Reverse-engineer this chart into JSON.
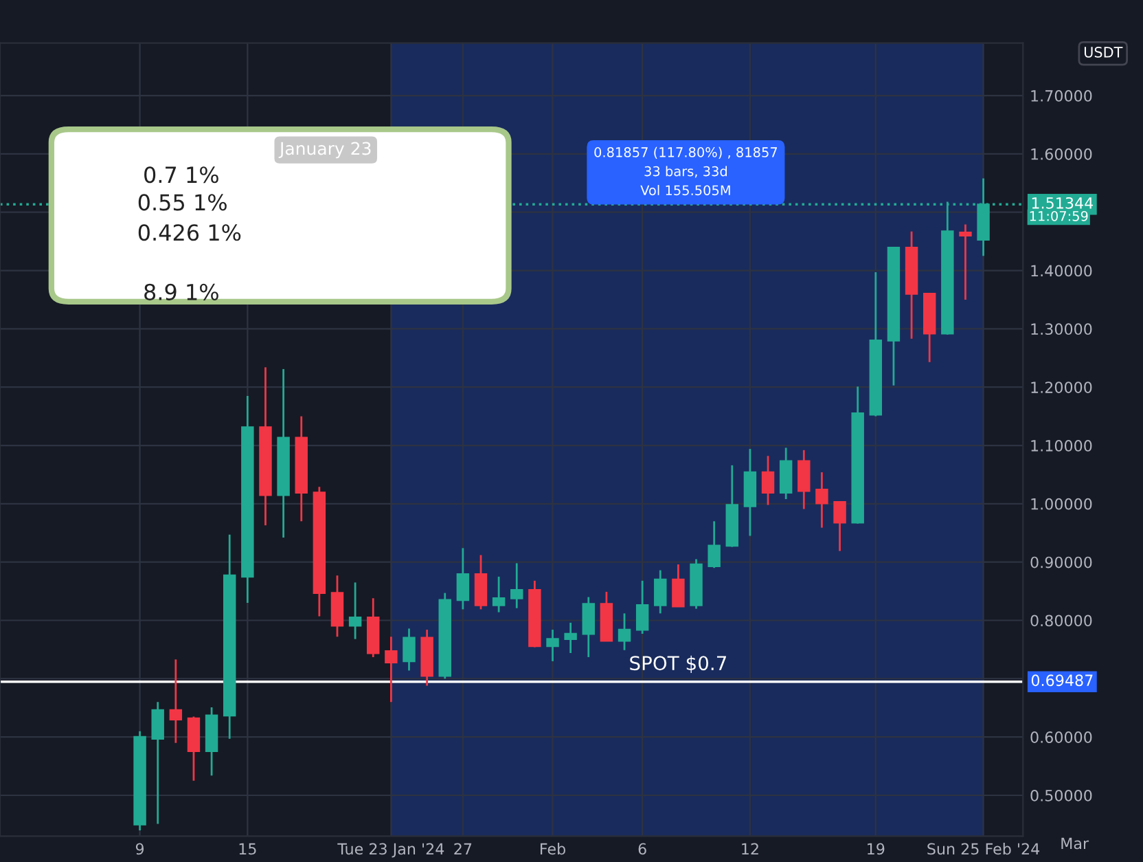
{
  "chart_data": {
    "type": "candlestick",
    "x": [
      "2024-01-09",
      "2024-01-10",
      "2024-01-11",
      "2024-01-12",
      "2024-01-13",
      "2024-01-14",
      "2024-01-15",
      "2024-01-16",
      "2024-01-17",
      "2024-01-18",
      "2024-01-19",
      "2024-01-20",
      "2024-01-21",
      "2024-01-22",
      "2024-01-23",
      "2024-01-24",
      "2024-01-25",
      "2024-01-26",
      "2024-01-27",
      "2024-01-28",
      "2024-01-29",
      "2024-01-30",
      "2024-01-31",
      "2024-02-01",
      "2024-02-02",
      "2024-02-03",
      "2024-02-04",
      "2024-02-05",
      "2024-02-06",
      "2024-02-07",
      "2024-02-08",
      "2024-02-09",
      "2024-02-10",
      "2024-02-11",
      "2024-02-12",
      "2024-02-13",
      "2024-02-14",
      "2024-02-15",
      "2024-02-16",
      "2024-02-17",
      "2024-02-18",
      "2024-02-19",
      "2024-02-20",
      "2024-02-21",
      "2024-02-22",
      "2024-02-23",
      "2024-02-24",
      "2024-02-25"
    ],
    "ohlc": [
      [
        0.45,
        0.61,
        0.44,
        0.6
      ],
      [
        0.597,
        0.66,
        0.451,
        0.646
      ],
      [
        0.646,
        0.733,
        0.59,
        0.63
      ],
      [
        0.632,
        0.635,
        0.525,
        0.576
      ],
      [
        0.576,
        0.651,
        0.534,
        0.637
      ],
      [
        0.637,
        0.947,
        0.597,
        0.877
      ],
      [
        0.875,
        1.185,
        0.83,
        1.131
      ],
      [
        1.131,
        1.234,
        0.963,
        1.015
      ],
      [
        1.015,
        1.231,
        0.942,
        1.113
      ],
      [
        1.113,
        1.15,
        0.97,
        1.019
      ],
      [
        1.019,
        1.029,
        0.807,
        0.847
      ],
      [
        0.847,
        0.877,
        0.772,
        0.791
      ],
      [
        0.791,
        0.865,
        0.768,
        0.805
      ],
      [
        0.805,
        0.838,
        0.737,
        0.744
      ],
      [
        0.747,
        0.772,
        0.66,
        0.728
      ],
      [
        0.73,
        0.786,
        0.714,
        0.77
      ],
      [
        0.77,
        0.784,
        0.688,
        0.705
      ],
      [
        0.705,
        0.847,
        0.7,
        0.835
      ],
      [
        0.835,
        0.924,
        0.819,
        0.879
      ],
      [
        0.879,
        0.912,
        0.819,
        0.826
      ],
      [
        0.826,
        0.875,
        0.814,
        0.838
      ],
      [
        0.838,
        0.898,
        0.821,
        0.852
      ],
      [
        0.852,
        0.868,
        0.754,
        0.756
      ],
      [
        0.756,
        0.784,
        0.73,
        0.768
      ],
      [
        0.768,
        0.796,
        0.744,
        0.777
      ],
      [
        0.777,
        0.84,
        0.737,
        0.828
      ],
      [
        0.828,
        0.849,
        0.765,
        0.765
      ],
      [
        0.765,
        0.812,
        0.749,
        0.784
      ],
      [
        0.784,
        0.868,
        0.777,
        0.826
      ],
      [
        0.826,
        0.886,
        0.812,
        0.87
      ],
      [
        0.87,
        0.896,
        0.824,
        0.824
      ],
      [
        0.826,
        0.905,
        0.82,
        0.896
      ],
      [
        0.893,
        0.97,
        0.89,
        0.928
      ],
      [
        0.928,
        1.066,
        0.926,
        0.998
      ],
      [
        0.996,
        1.094,
        0.945,
        1.054
      ],
      [
        1.054,
        1.082,
        0.998,
        1.019
      ],
      [
        1.019,
        1.096,
        1.008,
        1.073
      ],
      [
        1.073,
        1.092,
        0.991,
        1.022
      ],
      [
        1.024,
        1.054,
        0.959,
        1.001
      ],
      [
        1.003,
        1.003,
        0.919,
        0.968
      ],
      [
        0.968,
        1.201,
        0.966,
        1.155
      ],
      [
        1.153,
        1.397,
        1.15,
        1.28
      ],
      [
        1.28,
        1.44,
        1.203,
        1.439
      ],
      [
        1.439,
        1.467,
        1.283,
        1.36
      ],
      [
        1.36,
        1.36,
        1.243,
        1.292
      ],
      [
        1.292,
        1.518,
        1.29,
        1.467
      ],
      [
        1.465,
        1.479,
        1.35,
        1.46
      ],
      [
        1.453,
        1.558,
        1.425,
        1.513
      ]
    ],
    "colors": [
      "#22ab94",
      "#22ab94",
      "#f23645",
      "#f23645",
      "#22ab94",
      "#22ab94",
      "#22ab94",
      "#f23645",
      "#22ab94",
      "#f23645",
      "#f23645",
      "#f23645",
      "#22ab94",
      "#f23645",
      "#f23645",
      "#22ab94",
      "#f23645",
      "#22ab94",
      "#22ab94",
      "#f23645",
      "#22ab94",
      "#22ab94",
      "#f23645",
      "#22ab94",
      "#22ab94",
      "#22ab94",
      "#f23645",
      "#22ab94",
      "#22ab94",
      "#22ab94",
      "#f23645",
      "#22ab94",
      "#22ab94",
      "#22ab94",
      "#22ab94",
      "#f23645",
      "#22ab94",
      "#f23645",
      "#f23645",
      "#f23645",
      "#22ab94",
      "#22ab94",
      "#22ab94",
      "#f23645",
      "#f23645",
      "#22ab94",
      "#f23645",
      "#22ab94"
    ],
    "xlim": [
      "2024-01-01T05:00",
      "2024-02-27T05:00"
    ],
    "xticks": [
      {
        "value": "2024-01-09",
        "label": "9"
      },
      {
        "value": "2024-01-15",
        "label": "15"
      },
      {
        "value": "2024-01-23",
        "label": "Tue 23 Jan '24"
      },
      {
        "value": "2024-01-27",
        "label": "27"
      },
      {
        "value": "2024-02-01",
        "label": "Feb"
      },
      {
        "value": "2024-02-06",
        "label": "6"
      },
      {
        "value": "2024-02-12",
        "label": "12"
      },
      {
        "value": "2024-02-19",
        "label": "19"
      },
      {
        "value": "2024-02-25",
        "label": "Sun 25 Feb '24"
      }
    ],
    "ylim": [
      0.43,
      1.79
    ],
    "yticks": [
      {
        "value": 0.5,
        "label": "0.50000"
      },
      {
        "value": 0.6,
        "label": "0.60000"
      },
      {
        "value": 0.7,
        "label": null
      },
      {
        "value": 0.8,
        "label": "0.80000"
      },
      {
        "value": 0.9,
        "label": "0.90000"
      },
      {
        "value": 1.0,
        "label": "1.00000"
      },
      {
        "value": 1.1,
        "label": "1.10000"
      },
      {
        "value": 1.2,
        "label": "1.20000"
      },
      {
        "value": 1.3,
        "label": "1.30000"
      },
      {
        "value": 1.4,
        "label": "1.40000"
      },
      {
        "value": 1.5,
        "label": null
      },
      {
        "value": 1.6,
        "label": "1.60000"
      },
      {
        "value": 1.7,
        "label": "1.70000"
      }
    ],
    "grid": true,
    "ref_lines": [
      {
        "axis": "y",
        "value": 0.69487,
        "label": "0.69487",
        "color": "#ffffff",
        "line_style": "solid"
      },
      {
        "axis": "y",
        "value": 1.51344,
        "label": "1.51344",
        "color": "#22ab94",
        "line_style": "dotted"
      }
    ],
    "bands": [
      {
        "axis": "x",
        "from": "2024-01-23",
        "to": "2024-02-25",
        "label": null,
        "color": "#1e3a8a"
      }
    ],
    "annotations": [
      "January 23",
      "0.7 1%",
      "0.55 1%",
      "0.426 1%",
      "8.9 1%",
      "0.81857 (117.80%) , 81857",
      "33 bars, 33d",
      "Vol 155.505M",
      "USDT",
      "11:07:59",
      "Mar",
      {
        "text": "SPOT $0.7",
        "x": "2024-02-08",
        "y": 0.69487
      }
    ]
  }
}
